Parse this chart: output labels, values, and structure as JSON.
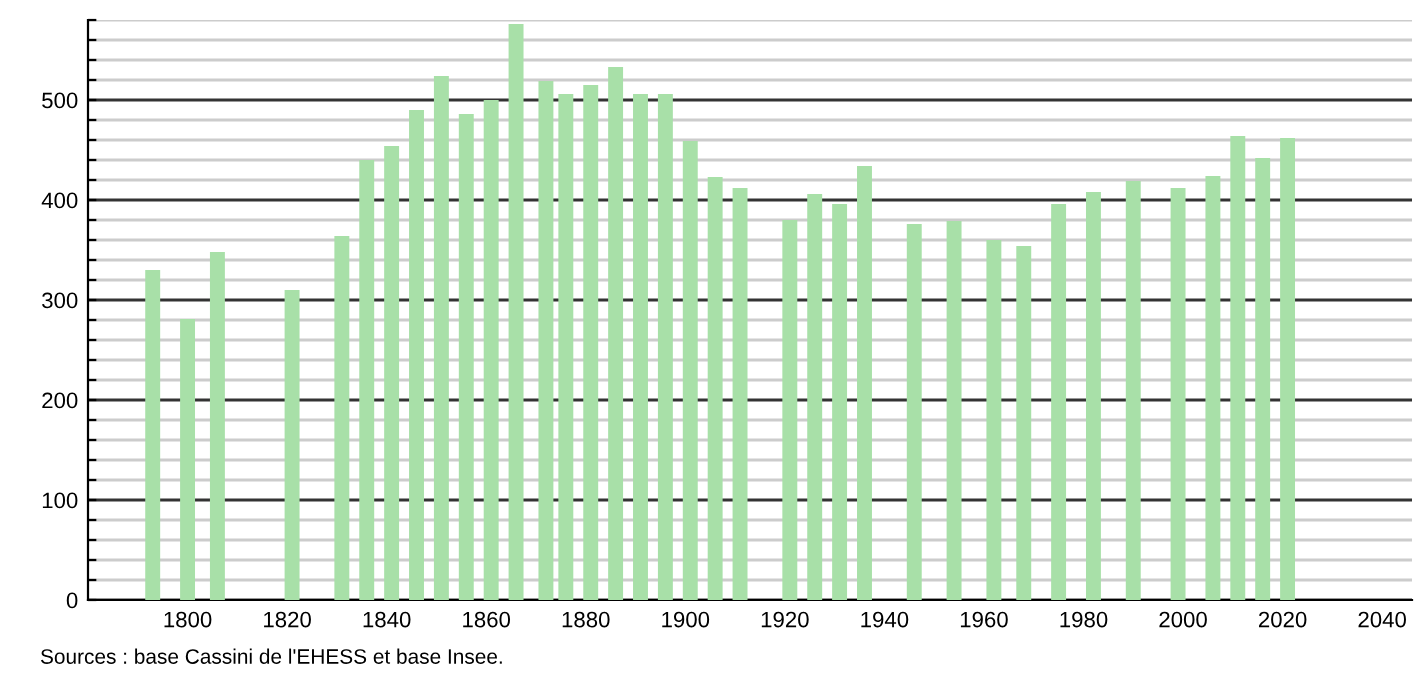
{
  "chart_data": {
    "type": "bar",
    "x": [
      1793,
      1800,
      1806,
      1821,
      1831,
      1836,
      1841,
      1846,
      1851,
      1856,
      1861,
      1866,
      1872,
      1876,
      1881,
      1886,
      1891,
      1896,
      1901,
      1906,
      1911,
      1921,
      1926,
      1931,
      1936,
      1946,
      1954,
      1962,
      1968,
      1975,
      1982,
      1990,
      1999,
      2006,
      2011,
      2016,
      2021
    ],
    "values": [
      330,
      281,
      348,
      310,
      364,
      440,
      454,
      490,
      524,
      486,
      500,
      576,
      519,
      506,
      515,
      533,
      506,
      506,
      459,
      423,
      412,
      380,
      406,
      396,
      434,
      376,
      379,
      360,
      354,
      396,
      408,
      419,
      412,
      424,
      464,
      442,
      462
    ],
    "color": "#a8e0a8",
    "xlim": [
      1780,
      2046
    ],
    "xticks": [
      1800,
      1820,
      1840,
      1860,
      1880,
      1900,
      1920,
      1940,
      1960,
      1980,
      2000,
      2020,
      2040
    ],
    "ylim": [
      0,
      580
    ],
    "yticks": [
      0,
      {
        "value": 20,
        "label": null
      },
      {
        "value": 40,
        "label": null
      },
      {
        "value": 60,
        "label": null
      },
      {
        "value": 80,
        "label": null
      },
      100,
      {
        "value": 120,
        "label": null
      },
      {
        "value": 140,
        "label": null
      },
      {
        "value": 160,
        "label": null
      },
      {
        "value": 180,
        "label": null
      },
      200,
      {
        "value": 220,
        "label": null
      },
      {
        "value": 240,
        "label": null
      },
      {
        "value": 260,
        "label": null
      },
      {
        "value": 280,
        "label": null
      },
      300,
      {
        "value": 320,
        "label": null
      },
      {
        "value": 340,
        "label": null
      },
      {
        "value": 360,
        "label": null
      },
      {
        "value": 380,
        "label": null
      },
      400,
      {
        "value": 420,
        "label": null
      },
      {
        "value": 440,
        "label": null
      },
      {
        "value": 460,
        "label": null
      },
      {
        "value": 480,
        "label": null
      },
      500,
      {
        "value": 520,
        "label": null
      },
      {
        "value": 540,
        "label": null
      },
      {
        "value": 560,
        "label": null
      },
      {
        "value": 580,
        "label": null
      }
    ],
    "grid": "y",
    "annotations": [
      "Sources : base Cassini de l'EHESS et base Insee."
    ]
  }
}
